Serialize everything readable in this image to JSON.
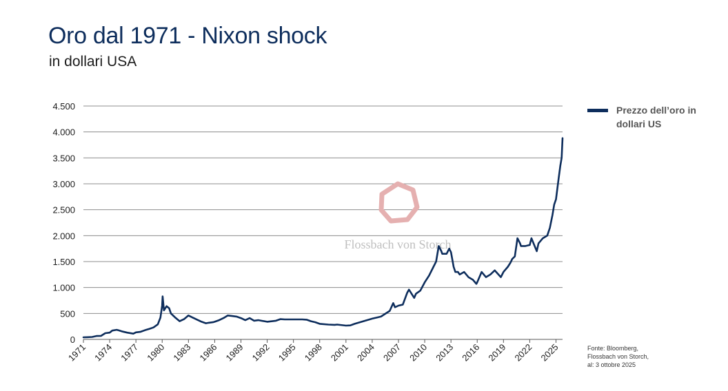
{
  "header": {
    "title": "Oro dal 1971 - Nixon shock",
    "subtitle": "in dollari USA"
  },
  "legend": {
    "label_line1": "Prezzo dell’oro in",
    "label_line2": "dollari US"
  },
  "watermark": {
    "text": "Flossbach von Storch"
  },
  "source": {
    "line1": "Fonte: Bloomberg,",
    "line2": "Flossbach von Storch,",
    "line3": "al: 3 ottobre 2025"
  },
  "colors": {
    "line": "#0d2d5c",
    "grid": "#8c8c8c",
    "title": "#0d2d5c",
    "watermark": "#e5b0b0"
  },
  "chart_data": {
    "type": "line",
    "title": "Oro dal 1971 - Nixon shock",
    "subtitle": "in dollari USA",
    "xlabel": "",
    "ylabel": "",
    "xlim": [
      1971,
      2025.75
    ],
    "ylim": [
      0,
      4500
    ],
    "yticks": [
      0,
      500,
      1000,
      1500,
      2000,
      2500,
      3000,
      3500,
      4000,
      4500
    ],
    "ytick_labels": [
      "0",
      "500",
      "1.000",
      "1.500",
      "2.000",
      "2.500",
      "3.000",
      "3.500",
      "4.000",
      "4.500"
    ],
    "xticks": [
      1971,
      1974,
      1977,
      1980,
      1983,
      1986,
      1989,
      1992,
      1995,
      1998,
      2001,
      2004,
      2007,
      2010,
      2013,
      2016,
      2019,
      2022,
      2025
    ],
    "xtick_labels": [
      "1971",
      "1974",
      "1977",
      "1980",
      "1983",
      "1986",
      "1989",
      "1992",
      "1995",
      "1998",
      "2001",
      "2004",
      "2007",
      "2010",
      "2013",
      "2016",
      "2019",
      "2022",
      "2025"
    ],
    "grid": true,
    "legend_position": "right",
    "series": [
      {
        "name": "Prezzo dell’oro in dollari US",
        "x": [
          1971.0,
          1971.5,
          1972.0,
          1972.5,
          1973.0,
          1973.5,
          1974.0,
          1974.3,
          1974.8,
          1975.0,
          1975.5,
          1976.0,
          1976.7,
          1977.0,
          1977.5,
          1978.0,
          1978.5,
          1979.0,
          1979.5,
          1979.8,
          1980.0,
          1980.05,
          1980.2,
          1980.5,
          1980.8,
          1981.0,
          1981.5,
          1982.0,
          1982.5,
          1983.0,
          1983.5,
          1984.0,
          1984.5,
          1985.0,
          1985.3,
          1985.8,
          1986.0,
          1986.5,
          1987.0,
          1987.5,
          1988.0,
          1988.5,
          1989.0,
          1989.5,
          1990.0,
          1990.5,
          1991.0,
          1992.0,
          1993.0,
          1993.5,
          1994.0,
          1995.0,
          1996.0,
          1996.5,
          1997.0,
          1997.5,
          1998.0,
          1999.0,
          1999.7,
          2000.0,
          2001.0,
          2001.5,
          2002.0,
          2003.0,
          2004.0,
          2005.0,
          2006.0,
          2006.4,
          2006.6,
          2007.0,
          2007.5,
          2008.0,
          2008.2,
          2008.8,
          2009.0,
          2009.5,
          2010.0,
          2010.5,
          2011.0,
          2011.3,
          2011.6,
          2011.9,
          2012.0,
          2012.5,
          2012.8,
          2013.0,
          2013.3,
          2013.5,
          2013.8,
          2014.0,
          2014.5,
          2015.0,
          2015.5,
          2015.9,
          2016.0,
          2016.5,
          2017.0,
          2017.5,
          2018.0,
          2018.7,
          2019.0,
          2019.5,
          2019.8,
          2020.0,
          2020.3,
          2020.6,
          2020.9,
          2021.0,
          2021.5,
          2022.0,
          2022.2,
          2022.8,
          2023.0,
          2023.5,
          2024.0,
          2024.3,
          2024.6,
          2024.8,
          2025.0,
          2025.3,
          2025.5,
          2025.65,
          2025.75
        ],
        "values": [
          40,
          42,
          46,
          65,
          66,
          120,
          130,
          170,
          185,
          175,
          150,
          130,
          110,
          135,
          145,
          175,
          200,
          230,
          290,
          420,
          650,
          830,
          560,
          640,
          600,
          500,
          420,
          350,
          390,
          460,
          420,
          380,
          340,
          310,
          320,
          330,
          340,
          370,
          410,
          460,
          450,
          440,
          410,
          370,
          410,
          360,
          370,
          340,
          360,
          390,
          385,
          385,
          385,
          380,
          350,
          330,
          300,
          285,
          280,
          285,
          265,
          270,
          300,
          350,
          400,
          440,
          550,
          700,
          620,
          650,
          670,
          900,
          960,
          800,
          880,
          940,
          1100,
          1230,
          1400,
          1500,
          1800,
          1700,
          1650,
          1650,
          1750,
          1680,
          1400,
          1300,
          1300,
          1250,
          1300,
          1200,
          1150,
          1070,
          1100,
          1300,
          1200,
          1250,
          1330,
          1200,
          1300,
          1400,
          1480,
          1550,
          1600,
          1950,
          1850,
          1800,
          1800,
          1820,
          1950,
          1700,
          1850,
          1950,
          2000,
          2150,
          2400,
          2600,
          2700,
          3100,
          3350,
          3500,
          3880
        ]
      }
    ]
  }
}
